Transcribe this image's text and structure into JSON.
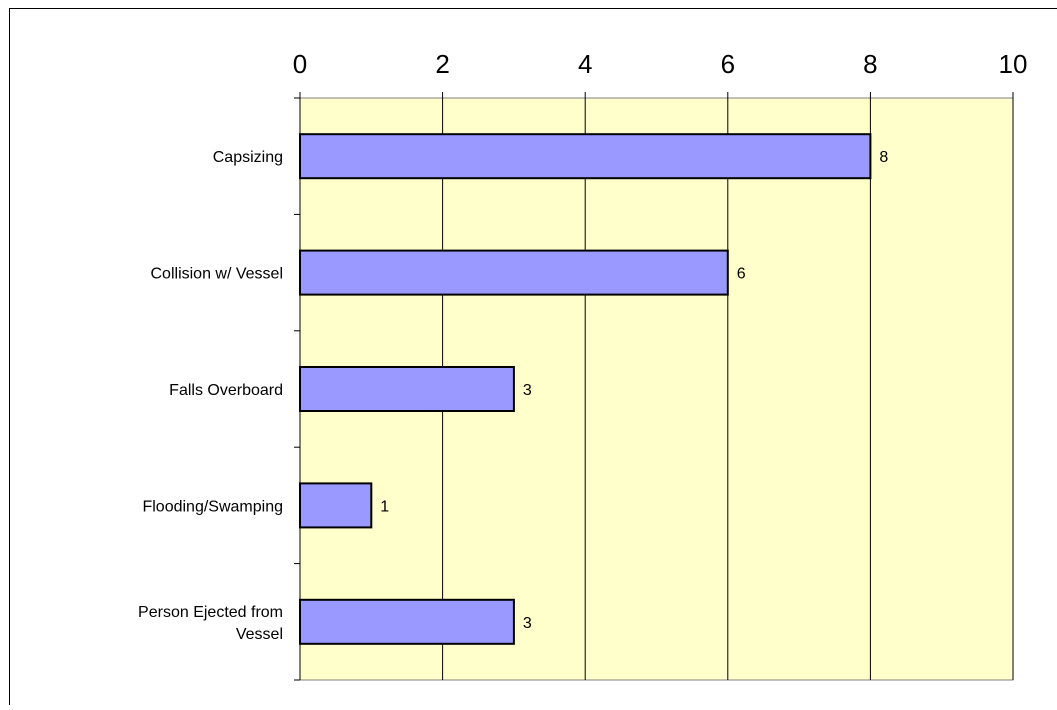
{
  "chart_data": {
    "type": "bar",
    "orientation": "horizontal",
    "categories": [
      "Capsizing",
      "Collision w/ Vessel",
      "Falls Overboard",
      "Flooding/Swamping",
      "Person Ejected from Vessel"
    ],
    "values": [
      8,
      6,
      3,
      1,
      3
    ],
    "xlim": [
      0,
      10
    ],
    "xticks": [
      "0",
      "2",
      "4",
      "6",
      "8",
      "10"
    ],
    "x_axis_position": "top",
    "grid": true,
    "legend": "none",
    "title": "",
    "xlabel": "",
    "ylabel": ""
  },
  "colors": {
    "plot_background": "#ffffcc",
    "bar_fill": "#9999ff",
    "bar_stroke": "#000000",
    "gridline": "#000000",
    "text": "#000000"
  }
}
